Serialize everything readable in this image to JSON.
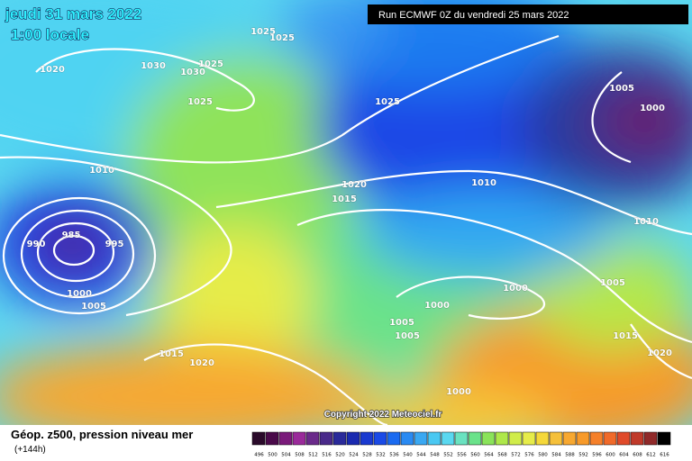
{
  "header": {
    "date": "jeudi 31 mars 2022",
    "time": "1:00 locale",
    "run": "Run ECMWF 0Z du vendredi 25 mars 2022"
  },
  "isobar_labels": [
    "1025",
    "1025",
    "1020",
    "1030",
    "1030",
    "1025",
    "1025",
    "1025",
    "1005",
    "1000",
    "1010",
    "1020",
    "1015",
    "1010",
    "1010",
    "985",
    "990",
    "995",
    "1000",
    "1005",
    "1000",
    "1005",
    "1000",
    "1005",
    "1005",
    "1015",
    "1015",
    "1020",
    "1020",
    "1000"
  ],
  "copyright": "Copyright 2022 Meteociel.fr",
  "footer": {
    "title": "Géop. z500, pression niveau mer",
    "step": "(+144h)"
  },
  "scale": {
    "labels": [
      496,
      500,
      504,
      508,
      512,
      516,
      520,
      524,
      528,
      532,
      536,
      540,
      544,
      548,
      552,
      556,
      560,
      564,
      568,
      572,
      576,
      580,
      584,
      588,
      592,
      596,
      600,
      604,
      608,
      612,
      616
    ],
    "colors": [
      "#2a0a2a",
      "#4a0a4a",
      "#7a1a7a",
      "#9a2a9a",
      "#6a2a8a",
      "#4a2a8a",
      "#2a2a9a",
      "#1a2ab0",
      "#1a3ad0",
      "#1a4ae6",
      "#1a6af0",
      "#2a8af2",
      "#3aa8f2",
      "#4ac8f2",
      "#5ad8f0",
      "#6ae2c0",
      "#6ae28a",
      "#8ae35a",
      "#aee84a",
      "#d0ec4a",
      "#e6ec4a",
      "#f5d83a",
      "#f5c03a",
      "#f7a830",
      "#f79a2a",
      "#f5802a",
      "#f06a2a",
      "#e04a2a",
      "#c03a2a",
      "#902a2a",
      "#000000"
    ]
  }
}
